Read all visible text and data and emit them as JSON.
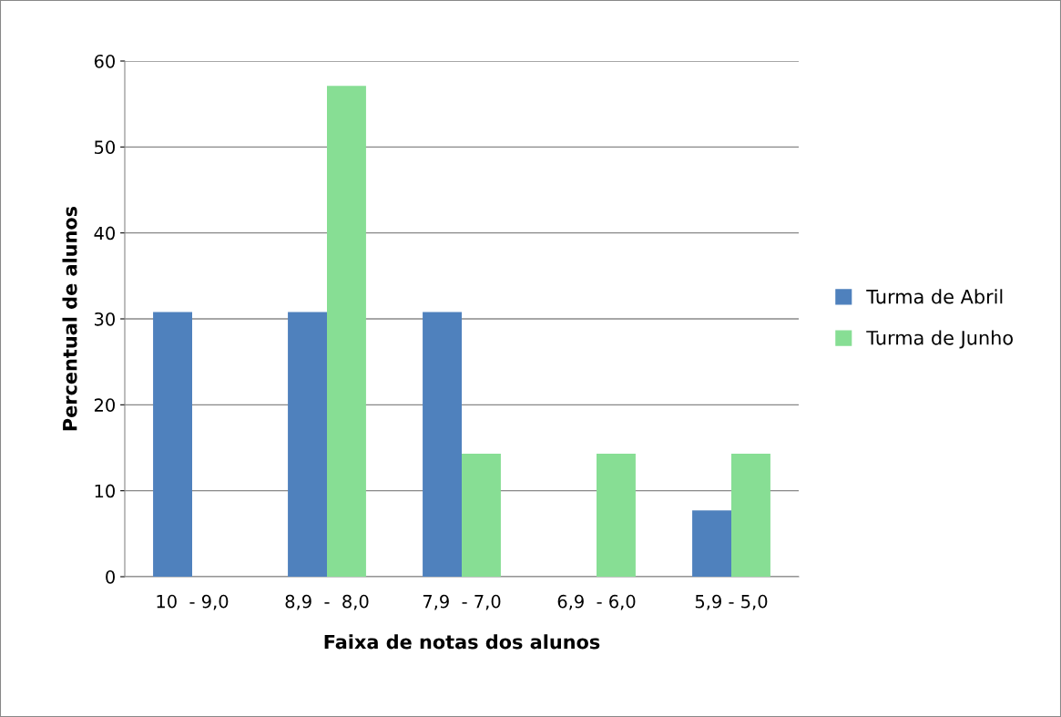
{
  "chart_data": {
    "type": "bar",
    "xlabel": "Faixa de notas dos alunos",
    "ylabel": "Percentual de alunos",
    "categories": [
      "10  - 9,0",
      "8,9  -  8,0",
      "7,9  - 7,0",
      "6,9  - 6,0",
      "5,9 - 5,0"
    ],
    "series": [
      {
        "name": "Turma de Abril",
        "color": "#4f81bd",
        "values": [
          30.8,
          30.8,
          30.8,
          0,
          7.7
        ]
      },
      {
        "name": "Turma de Junho",
        "color": "#87de94",
        "values": [
          0,
          57.1,
          14.3,
          14.3,
          14.3
        ]
      }
    ],
    "ylim": [
      0,
      60
    ],
    "yticks": [
      0,
      10,
      20,
      30,
      40,
      50,
      60
    ],
    "grid": "y",
    "legend": "right"
  }
}
